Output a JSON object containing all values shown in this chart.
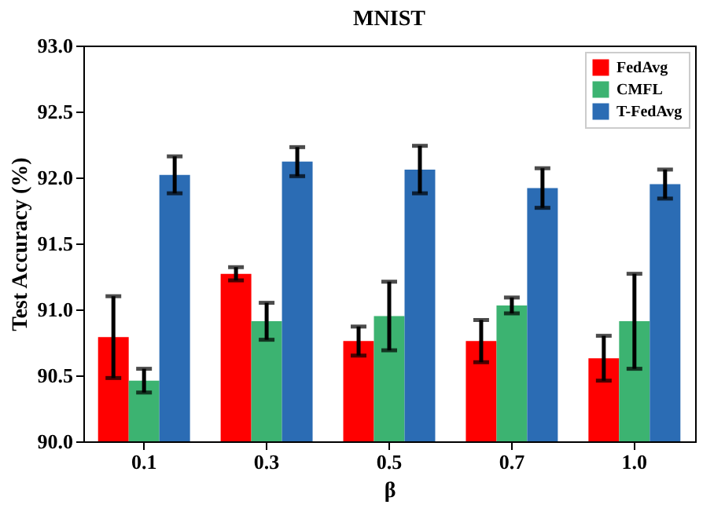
{
  "chart_data": {
    "type": "bar",
    "title": "MNIST",
    "xlabel": "β",
    "ylabel": "Test Accuracy (%)",
    "categories": [
      "0.1",
      "0.3",
      "0.5",
      "0.7",
      "1.0"
    ],
    "series": [
      {
        "name": "FedAvg",
        "color": "#ff0000",
        "values": [
          90.79,
          91.27,
          90.76,
          90.76,
          90.63
        ],
        "errors": [
          0.31,
          0.05,
          0.11,
          0.16,
          0.17
        ]
      },
      {
        "name": "CMFL",
        "color": "#3cb371",
        "values": [
          90.46,
          90.91,
          90.95,
          91.03,
          90.91
        ],
        "errors": [
          0.09,
          0.14,
          0.26,
          0.06,
          0.36
        ]
      },
      {
        "name": "T-FedAvg",
        "color": "#2b6cb4",
        "values": [
          92.02,
          92.12,
          92.06,
          91.92,
          91.95
        ],
        "errors": [
          0.14,
          0.11,
          0.18,
          0.15,
          0.11
        ]
      }
    ],
    "ylim": [
      90,
      93
    ],
    "yticks": [
      {
        "value": 90,
        "label": "90.0"
      },
      {
        "value": 90.5,
        "label": "90.5"
      },
      {
        "value": 91,
        "label": "91.0"
      },
      {
        "value": 91.5,
        "label": "91.5"
      },
      {
        "value": 92,
        "label": "92.0"
      },
      {
        "value": 92.5,
        "label": "92.5"
      },
      {
        "value": 93,
        "label": "93.0"
      }
    ],
    "grid": false,
    "legend": "top right"
  }
}
